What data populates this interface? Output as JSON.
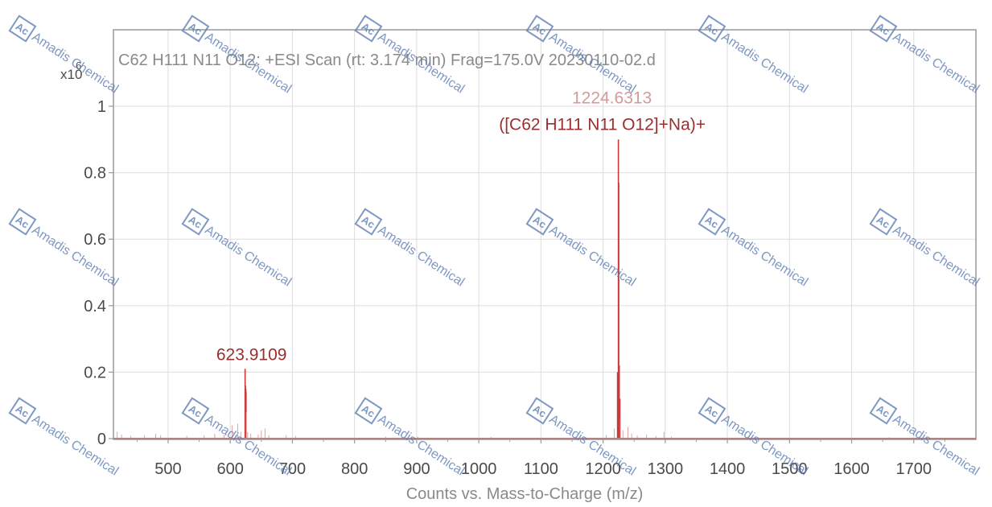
{
  "chart_data": {
    "type": "line",
    "title": "C62 H111 N11 O12: +ESI Scan (rt: 3.174 min) Frag=175.0V 20230110-02.d",
    "y_multiplier": "x10",
    "y_exponent": "6",
    "xlabel": "Counts vs. Mass-to-Charge (m/z)",
    "ylabel": "",
    "xlim": [
      412,
      1800
    ],
    "ylim": [
      0,
      1.23
    ],
    "grid": true,
    "x_ticks": [
      500,
      600,
      700,
      800,
      900,
      1000,
      1100,
      1200,
      1300,
      1400,
      1500,
      1600,
      1700
    ],
    "y_ticks": [
      {
        "value": 0,
        "label": "0"
      },
      {
        "value": 0.2,
        "label": "0.2"
      },
      {
        "value": 0.4,
        "label": "0.4"
      },
      {
        "value": 0.6,
        "label": "0.6"
      },
      {
        "value": 0.8,
        "label": "0.8"
      },
      {
        "value": 1,
        "label": "1"
      }
    ],
    "series": [
      {
        "peaks": [
          {
            "x": 418,
            "y": 0.02
          },
          {
            "x": 425,
            "y": 0.012
          },
          {
            "x": 440,
            "y": 0.008
          },
          {
            "x": 462,
            "y": 0.01
          },
          {
            "x": 480,
            "y": 0.015
          },
          {
            "x": 488,
            "y": 0.01
          },
          {
            "x": 530,
            "y": 0.008
          },
          {
            "x": 558,
            "y": 0.01
          },
          {
            "x": 575,
            "y": 0.014
          },
          {
            "x": 590,
            "y": 0.012
          },
          {
            "x": 603,
            "y": 0.04
          },
          {
            "x": 609,
            "y": 0.01
          },
          {
            "x": 612,
            "y": 0.045
          },
          {
            "x": 617,
            "y": 0.02
          },
          {
            "x": 623.9109,
            "y": 0.21
          },
          {
            "x": 624.4,
            "y": 0.16
          },
          {
            "x": 625,
            "y": 0.15
          },
          {
            "x": 625.4,
            "y": 0.14
          },
          {
            "x": 626,
            "y": 0.08
          },
          {
            "x": 628,
            "y": 0.02
          },
          {
            "x": 633,
            "y": 0.015
          },
          {
            "x": 645,
            "y": 0.012
          },
          {
            "x": 650,
            "y": 0.025
          },
          {
            "x": 656,
            "y": 0.03
          },
          {
            "x": 662,
            "y": 0.01
          },
          {
            "x": 690,
            "y": 0.01
          },
          {
            "x": 705,
            "y": 0.008
          },
          {
            "x": 850,
            "y": 0.006
          },
          {
            "x": 902,
            "y": 0.006
          },
          {
            "x": 1020,
            "y": 0.005
          },
          {
            "x": 1205,
            "y": 0.01
          },
          {
            "x": 1218,
            "y": 0.03
          },
          {
            "x": 1223.3,
            "y": 0.2
          },
          {
            "x": 1224.6313,
            "y": 0.9
          },
          {
            "x": 1225.2,
            "y": 0.77
          },
          {
            "x": 1226,
            "y": 0.22
          },
          {
            "x": 1227,
            "y": 0.12
          },
          {
            "x": 1228,
            "y": 0.06
          },
          {
            "x": 1232,
            "y": 0.025
          },
          {
            "x": 1240,
            "y": 0.035
          },
          {
            "x": 1246,
            "y": 0.015
          },
          {
            "x": 1255,
            "y": 0.01
          },
          {
            "x": 1270,
            "y": 0.012
          },
          {
            "x": 1285,
            "y": 0.008
          },
          {
            "x": 1298,
            "y": 0.02
          },
          {
            "x": 1310,
            "y": 0.006
          },
          {
            "x": 1660,
            "y": 0.004
          }
        ]
      }
    ],
    "annotations": [
      {
        "x": 623.9109,
        "y": 0.21,
        "mz_label": "623.9109",
        "formula_label": ""
      },
      {
        "x": 1224.6313,
        "y": 0.9,
        "mz_label": "1224.6313",
        "formula_label": "([C62 H111 N11 O12]+Na)+"
      }
    ],
    "colors": {
      "peak": "#c83a3a",
      "peak_light": "#e8a0a0",
      "grid": "#dddddd",
      "frame": "#999999",
      "baseline": "#b58080",
      "label_dark": "#9a2f2f",
      "label_light": "#d59a9a",
      "axis_text": "#4a4a4a"
    }
  },
  "watermark": {
    "text": "Amadis Chemical",
    "logo_text": "Ac",
    "color": "#5b7cb4"
  }
}
